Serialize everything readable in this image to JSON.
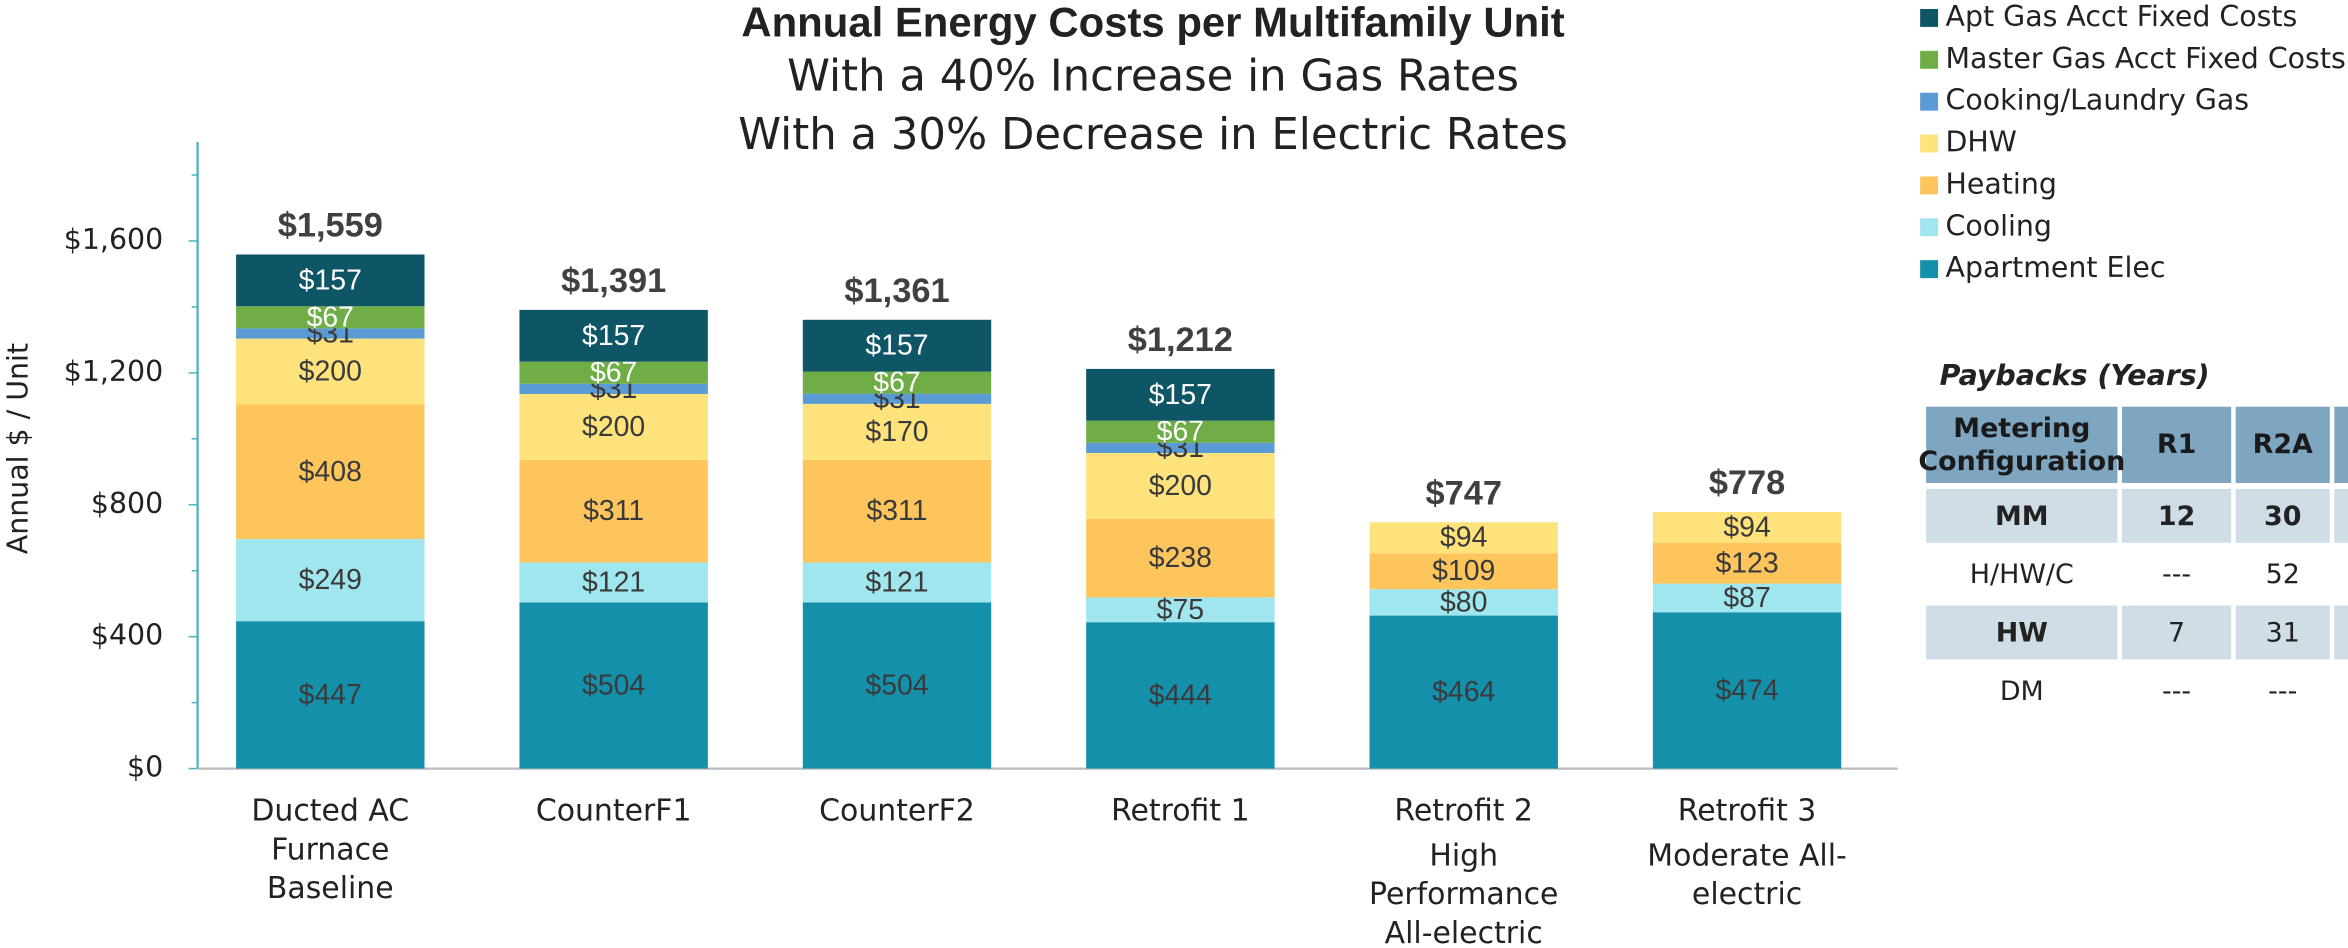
{
  "chart_data": {
    "type": "stacked_bar",
    "title": "Annual Energy Costs per Multifamily Unit",
    "subtitle": [
      "With a 40% Increase in Gas Rates",
      "With a 30% Decrease in Electric Rates"
    ],
    "y_label": "Annual $ / Unit",
    "categories": [
      [
        "Ducted AC",
        "Furnace",
        "Baseline"
      ],
      [
        "CounterF1"
      ],
      [
        "CounterF2"
      ],
      [
        "Retrofit 1"
      ],
      [
        "Retrofit 2"
      ],
      [
        "Retrofit 3"
      ]
    ],
    "category_notes": [
      null,
      null,
      null,
      null,
      [
        "High",
        "Performance",
        "All-electric"
      ],
      [
        "Moderate All-",
        "electric"
      ]
    ],
    "ylim": [
      0,
      1900
    ],
    "yticks": [
      {
        "value": 0,
        "label": "$0"
      },
      {
        "value": 400,
        "label": "$400"
      },
      {
        "value": 800,
        "label": "$800"
      },
      {
        "value": 1200,
        "label": "$1,200"
      },
      {
        "value": 1600,
        "label": "$1,600"
      }
    ],
    "yminorticks": [
      200,
      600,
      1000,
      1400,
      1800
    ],
    "series": [
      {
        "name": "Apartment Elec",
        "color": "#1590ab",
        "label_color": "#3a3a3a",
        "values": [
          447,
          504,
          504,
          444,
          464,
          474
        ],
        "value_labels": [
          "$447",
          "$504",
          "$504",
          "$444",
          "$464",
          "$474"
        ]
      },
      {
        "name": "Cooling",
        "color": "#a0e6ee",
        "label_color": "#3a3a3a",
        "values": [
          249,
          121,
          121,
          75,
          80,
          87
        ],
        "value_labels": [
          "$249",
          "$121",
          "$121",
          "$75",
          "$80",
          "$87"
        ]
      },
      {
        "name": "Heating",
        "color": "#fec55d",
        "label_color": "#3a3a3a",
        "values": [
          408,
          311,
          311,
          238,
          109,
          123
        ],
        "value_labels": [
          "$408",
          "$311",
          "$311",
          "$238",
          "$109",
          "$123"
        ]
      },
      {
        "name": "DHW",
        "color": "#fee27c",
        "label_color": "#3a3a3a",
        "values": [
          200,
          200,
          170,
          200,
          94,
          94
        ],
        "value_labels": [
          "$200",
          "$200",
          "$170",
          "$200",
          "$94",
          "$94"
        ]
      },
      {
        "name": "Cooking/Laundry Gas",
        "color": "#5b9bd5",
        "label_color": "#3a3a3a",
        "values": [
          31,
          31,
          31,
          31,
          null,
          null
        ],
        "value_labels": [
          "$31",
          "$31",
          "$31",
          "$31",
          null,
          null
        ]
      },
      {
        "name": "Master Gas Acct Fixed Costs",
        "color": "#6fae46",
        "label_color": "#ffffff",
        "values": [
          67,
          67,
          67,
          67,
          null,
          null
        ],
        "value_labels": [
          "$67",
          "$67",
          "$67",
          "$67",
          null,
          null
        ]
      },
      {
        "name": "Apt Gas Acct Fixed Costs",
        "color": "#0e5566",
        "label_color": "#ffffff",
        "values": [
          157,
          157,
          157,
          157,
          null,
          null
        ],
        "value_labels": [
          "$157",
          "$157",
          "$157",
          "$157",
          null,
          null
        ]
      }
    ],
    "totals": [
      1559,
      1391,
      1361,
      1212,
      747,
      778
    ],
    "total_labels": [
      "$1,559",
      "$1,391",
      "$1,361",
      "$1,212",
      "$747",
      "$778"
    ],
    "legend": "top-right"
  },
  "paybacks": {
    "title": "Paybacks (Years)",
    "header": [
      "Metering Configuration",
      "R1",
      "R2A"
    ],
    "rows": [
      [
        "MM",
        "12",
        "30"
      ],
      [
        "H/HW/C",
        "---",
        "52"
      ],
      [
        "HW",
        "7",
        "31"
      ],
      [
        "DM",
        "---",
        "---"
      ]
    ]
  }
}
